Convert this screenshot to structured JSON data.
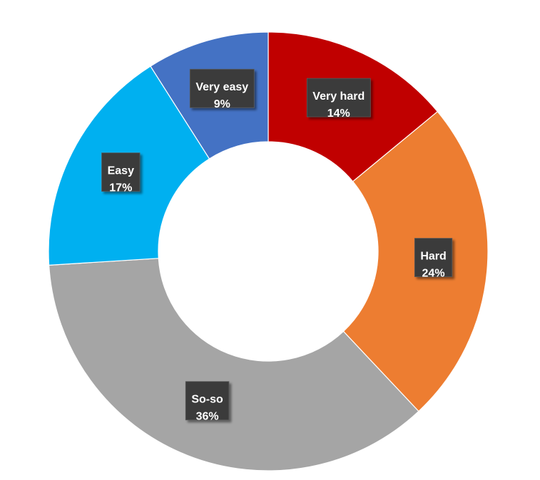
{
  "chart_data": {
    "type": "pie",
    "variant": "donut",
    "title": "",
    "start_angle_deg": 0,
    "direction": "clockwise",
    "slices": [
      {
        "label": "Very hard",
        "value": 14,
        "display": "14%",
        "color": "#c00000"
      },
      {
        "label": "Hard",
        "value": 24,
        "display": "24%",
        "color": "#ed7d31"
      },
      {
        "label": "So-so",
        "value": 36,
        "display": "36%",
        "color": "#a5a5a5"
      },
      {
        "label": "Easy",
        "value": 17,
        "display": "17%",
        "color": "#00b0f0"
      },
      {
        "label": "Very easy",
        "value": 9,
        "display": "9%",
        "color": "#4472c4"
      }
    ],
    "legend": "none",
    "data_label_style": "dark box with white bold text"
  }
}
